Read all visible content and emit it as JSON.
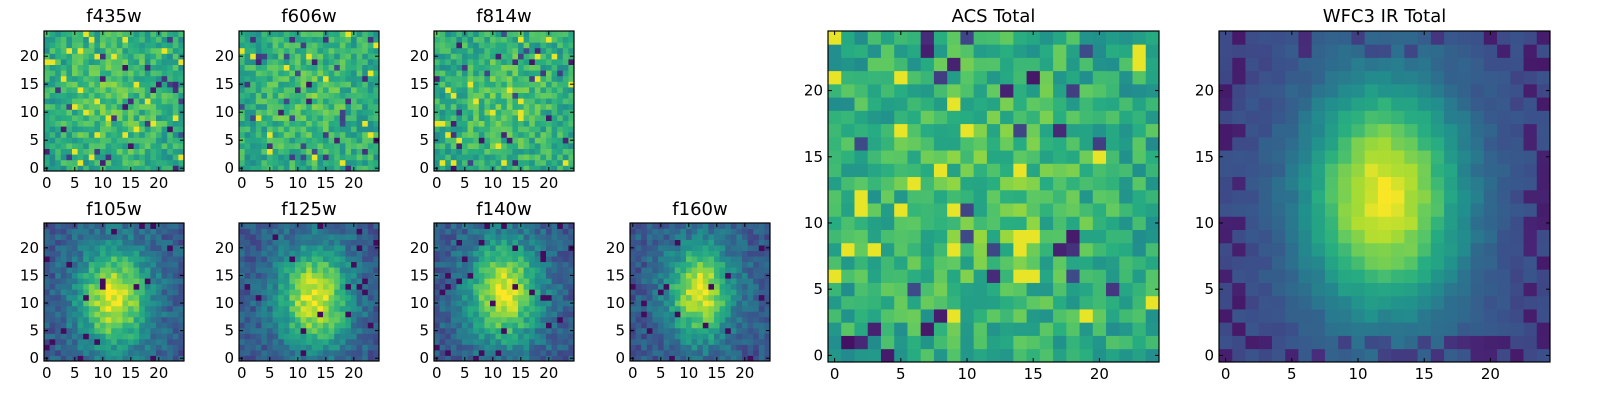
{
  "figure_title": "",
  "colors": {
    "viridis_low": "#440154",
    "viridis_mid": "#21918c",
    "viridis_high": "#fde725",
    "axes_frame": "#000000"
  },
  "chart_data": [
    {
      "type": "heatmap",
      "id": "f435w",
      "title": "f435w",
      "grid_shape": [
        25,
        25
      ],
      "colormap": "viridis",
      "x_ticks": [
        0,
        5,
        10,
        15,
        20
      ],
      "y_ticks": [
        0,
        5,
        10,
        15,
        20
      ],
      "xlim": [
        -0.5,
        24.5
      ],
      "ylim": [
        -0.5,
        24.5
      ],
      "pattern": "noise",
      "center": [
        12,
        12
      ],
      "sigma": [
        6.0,
        8.0
      ],
      "seed": 11
    },
    {
      "type": "heatmap",
      "id": "f606w",
      "title": "f606w",
      "grid_shape": [
        25,
        25
      ],
      "colormap": "viridis",
      "x_ticks": [
        0,
        5,
        10,
        15,
        20
      ],
      "y_ticks": [
        0,
        5,
        10,
        15,
        20
      ],
      "xlim": [
        -0.5,
        24.5
      ],
      "ylim": [
        -0.5,
        24.5
      ],
      "pattern": "noise",
      "center": [
        12,
        12
      ],
      "sigma": [
        6.0,
        8.0
      ],
      "seed": 23
    },
    {
      "type": "heatmap",
      "id": "f814w",
      "title": "f814w",
      "grid_shape": [
        25,
        25
      ],
      "colormap": "viridis",
      "x_ticks": [
        0,
        5,
        10,
        15,
        20
      ],
      "y_ticks": [
        0,
        5,
        10,
        15,
        20
      ],
      "xlim": [
        -0.5,
        24.5
      ],
      "ylim": [
        -0.5,
        24.5
      ],
      "pattern": "noise",
      "center": [
        12,
        12
      ],
      "sigma": [
        6.0,
        8.0
      ],
      "seed": 37
    },
    {
      "type": "heatmap",
      "id": "f105w",
      "title": "f105w",
      "grid_shape": [
        25,
        25
      ],
      "colormap": "viridis",
      "x_ticks": [
        0,
        5,
        10,
        15,
        20
      ],
      "y_ticks": [
        0,
        5,
        10,
        15,
        20
      ],
      "xlim": [
        -0.5,
        24.5
      ],
      "ylim": [
        -0.5,
        24.5
      ],
      "pattern": "source",
      "center": [
        12,
        11
      ],
      "sigma": [
        4.5,
        6.5
      ],
      "seed": 41
    },
    {
      "type": "heatmap",
      "id": "f125w",
      "title": "f125w",
      "grid_shape": [
        25,
        25
      ],
      "colormap": "viridis",
      "x_ticks": [
        0,
        5,
        10,
        15,
        20
      ],
      "y_ticks": [
        0,
        5,
        10,
        15,
        20
      ],
      "xlim": [
        -0.5,
        24.5
      ],
      "ylim": [
        -0.5,
        24.5
      ],
      "pattern": "source",
      "center": [
        13,
        11
      ],
      "sigma": [
        4.5,
        6.5
      ],
      "seed": 53
    },
    {
      "type": "heatmap",
      "id": "f140w",
      "title": "f140w",
      "grid_shape": [
        25,
        25
      ],
      "colormap": "viridis",
      "x_ticks": [
        0,
        5,
        10,
        15,
        20
      ],
      "y_ticks": [
        0,
        5,
        10,
        15,
        20
      ],
      "xlim": [
        -0.5,
        24.5
      ],
      "ylim": [
        -0.5,
        24.5
      ],
      "pattern": "source",
      "center": [
        12,
        12
      ],
      "sigma": [
        4.5,
        6.5
      ],
      "seed": 67
    },
    {
      "type": "heatmap",
      "id": "f160w",
      "title": "f160w",
      "grid_shape": [
        25,
        25
      ],
      "colormap": "viridis",
      "x_ticks": [
        0,
        5,
        10,
        15,
        20
      ],
      "y_ticks": [
        0,
        5,
        10,
        15,
        20
      ],
      "xlim": [
        -0.5,
        24.5
      ],
      "ylim": [
        -0.5,
        24.5
      ],
      "pattern": "source",
      "center": [
        12,
        12
      ],
      "sigma": [
        4.0,
        6.0
      ],
      "seed": 79
    },
    {
      "type": "heatmap",
      "id": "acs_total",
      "title": "ACS Total",
      "grid_shape": [
        25,
        25
      ],
      "colormap": "viridis",
      "x_ticks": [
        0,
        5,
        10,
        15,
        20
      ],
      "y_ticks": [
        0,
        5,
        10,
        15,
        20
      ],
      "xlim": [
        -0.5,
        24.5
      ],
      "ylim": [
        -0.5,
        24.5
      ],
      "pattern": "noise",
      "center": [
        12,
        12
      ],
      "sigma": [
        6.0,
        8.0
      ],
      "seed": 97
    },
    {
      "type": "heatmap",
      "id": "wfc3_ir_total",
      "title": "WFC3 IR Total",
      "grid_shape": [
        25,
        25
      ],
      "colormap": "viridis",
      "x_ticks": [
        0,
        5,
        10,
        15,
        20
      ],
      "y_ticks": [
        0,
        5,
        10,
        15,
        20
      ],
      "xlim": [
        -0.5,
        24.5
      ],
      "ylim": [
        -0.5,
        24.5
      ],
      "pattern": "smooth",
      "center": [
        12,
        12
      ],
      "sigma": [
        4.2,
        6.2
      ],
      "seed": 101
    }
  ]
}
